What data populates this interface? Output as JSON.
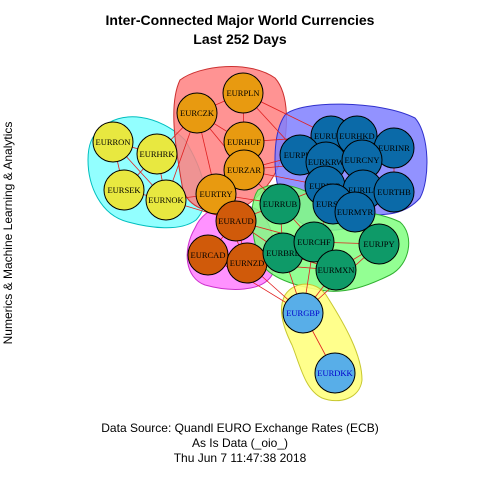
{
  "title_line1": "Inter-Connected Major World Currencies",
  "title_line2": "Last 252 Days",
  "y_side_label": "Numerics & Machine Learning & Analytics",
  "caption_line1": "Data Source: Quandl EURO Exchange Rates (ECB)",
  "caption_line2": "As Is Data (_oio_)",
  "caption_line3": "Thu Jun  7 11:47:38 2018",
  "colors": {
    "cluster_yellow": "#e8e840",
    "cluster_orange": "#e89a10",
    "cluster_darkorange": "#d05a0a",
    "cluster_blue": "#0b6aa8",
    "cluster_green": "#0e9a68",
    "cluster_lightblue": "#58aee8",
    "edge_red": "#e02020",
    "edge_dark": "#333333"
  },
  "groups": [
    {
      "name": "EURRON group",
      "fill": "#7fffff",
      "members": [
        "EURRON",
        "EURHRK",
        "EURSEK",
        "EURNOK"
      ]
    },
    {
      "name": "EURPLN group",
      "fill": "#ff8080",
      "members": [
        "EURPLN",
        "EURCZK",
        "EURHUF",
        "EURZAR",
        "EURTRY"
      ]
    },
    {
      "name": "EURUSD group",
      "fill": "#7f7fff",
      "members": [
        "EURUSD",
        "EURHKD",
        "EURPHP",
        "EURINR",
        "EURKRW",
        "EURCNY",
        "EURIDR",
        "EURILS",
        "EURTHB",
        "EURSGD",
        "EURMYR"
      ]
    },
    {
      "name": "EURAUD group",
      "fill": "#ff7fff",
      "members": [
        "EURAUD",
        "EURCAD",
        "EURNZD"
      ]
    },
    {
      "name": "EURRUB group",
      "fill": "#80ff80",
      "members": [
        "EURRUB",
        "EURBRL",
        "EURCHF",
        "EURJPY",
        "EURMXN"
      ]
    },
    {
      "name": "EURGBP group",
      "fill": "#ffff80",
      "members": [
        "EURGBP",
        "EURDKK"
      ]
    }
  ],
  "nodes": [
    {
      "label": "EURRON",
      "color": "#e8e840"
    },
    {
      "label": "EURHRK",
      "color": "#e8e840"
    },
    {
      "label": "EURSEK",
      "color": "#e8e840"
    },
    {
      "label": "EURNOK",
      "color": "#e8e840"
    },
    {
      "label": "EURPLN",
      "color": "#e89a10"
    },
    {
      "label": "EURCZK",
      "color": "#e89a10"
    },
    {
      "label": "EURHUF",
      "color": "#e89a10"
    },
    {
      "label": "EURZAR",
      "color": "#e89a10"
    },
    {
      "label": "EURTRY",
      "color": "#e89a10"
    },
    {
      "label": "EURAUD",
      "color": "#d05a0a"
    },
    {
      "label": "EURCAD",
      "color": "#d05a0a"
    },
    {
      "label": "EURNZD",
      "color": "#d05a0a"
    },
    {
      "label": "EURUSD",
      "color": "#0b6aa8"
    },
    {
      "label": "EURHKD",
      "color": "#0b6aa8"
    },
    {
      "label": "EURPHP",
      "color": "#0b6aa8"
    },
    {
      "label": "EURINR",
      "color": "#0b6aa8"
    },
    {
      "label": "EURKRW",
      "color": "#0b6aa8"
    },
    {
      "label": "EURCNY",
      "color": "#0b6aa8"
    },
    {
      "label": "EURIDR",
      "color": "#0b6aa8"
    },
    {
      "label": "EURILS",
      "color": "#0b6aa8"
    },
    {
      "label": "EURTHB",
      "color": "#0b6aa8"
    },
    {
      "label": "EURSGD",
      "color": "#0b6aa8"
    },
    {
      "label": "EURMYR",
      "color": "#0b6aa8"
    },
    {
      "label": "EURRUB",
      "color": "#0e9a68"
    },
    {
      "label": "EURBRL",
      "color": "#0e9a68"
    },
    {
      "label": "EURCHF",
      "color": "#0e9a68"
    },
    {
      "label": "EURJPY",
      "color": "#0e9a68"
    },
    {
      "label": "EURMXN",
      "color": "#0e9a68"
    },
    {
      "label": "EURGBP",
      "color": "#58aee8"
    },
    {
      "label": "EURDKK",
      "color": "#58aee8"
    }
  ],
  "edges": [
    [
      "EURRON",
      "EURHRK"
    ],
    [
      "EURRON",
      "EURSEK"
    ],
    [
      "EURRON",
      "EURNOK"
    ],
    [
      "EURHRK",
      "EURSEK"
    ],
    [
      "EURHRK",
      "EURNOK"
    ],
    [
      "EURSEK",
      "EURNOK"
    ],
    [
      "EURNOK",
      "EURTRY"
    ],
    [
      "EURNOK",
      "EURAUD"
    ],
    [
      "EURHRK",
      "EURCZK"
    ],
    [
      "EURNOK",
      "EURCZK"
    ],
    [
      "EURPLN",
      "EURCZK"
    ],
    [
      "EURPLN",
      "EURHUF"
    ],
    [
      "EURCZK",
      "EURHUF"
    ],
    [
      "EURCZK",
      "EURZAR"
    ],
    [
      "EURHUF",
      "EURZAR"
    ],
    [
      "EURZAR",
      "EURTRY"
    ],
    [
      "EURHUF",
      "EURTRY"
    ],
    [
      "EURCZK",
      "EURTRY"
    ],
    [
      "EURPLN",
      "EURUSD"
    ],
    [
      "EURPLN",
      "EURPHP"
    ],
    [
      "EURHUF",
      "EURUSD"
    ],
    [
      "EURZAR",
      "EURPHP"
    ],
    [
      "EURZAR",
      "EURKRW"
    ],
    [
      "EURZAR",
      "EURRUB"
    ],
    [
      "EURTRY",
      "EURRUB"
    ],
    [
      "EURZAR",
      "EURIDR"
    ],
    [
      "EURTRY",
      "EURAUD"
    ],
    [
      "EURAUD",
      "EURCAD"
    ],
    [
      "EURAUD",
      "EURNZD"
    ],
    [
      "EURCAD",
      "EURNZD"
    ],
    [
      "EURAUD",
      "EURRUB"
    ],
    [
      "EURAUD",
      "EURBRL"
    ],
    [
      "EURNZD",
      "EURBRL"
    ],
    [
      "EURCAD",
      "EURBRL"
    ],
    [
      "EURNZD",
      "EURMXN"
    ],
    [
      "EURAUD",
      "EURCHF"
    ],
    [
      "EURCAD",
      "EURGBP"
    ],
    [
      "EURNZD",
      "EURGBP"
    ],
    [
      "EURTRY",
      "EURNZD"
    ],
    [
      "EURUSD",
      "EURHKD"
    ],
    [
      "EURUSD",
      "EURPHP"
    ],
    [
      "EURUSD",
      "EURKRW"
    ],
    [
      "EURUSD",
      "EURCNY"
    ],
    [
      "EURHKD",
      "EURCNY"
    ],
    [
      "EURHKD",
      "EURINR"
    ],
    [
      "EURPHP",
      "EURKRW"
    ],
    [
      "EURKRW",
      "EURCNY"
    ],
    [
      "EURCNY",
      "EURINR"
    ],
    [
      "EURCNY",
      "EURILS"
    ],
    [
      "EURINR",
      "EURTHB"
    ],
    [
      "EURILS",
      "EURTHB"
    ],
    [
      "EURIDR",
      "EURSGD"
    ],
    [
      "EURSGD",
      "EURMYR"
    ],
    [
      "EURIDR",
      "EURKRW"
    ],
    [
      "EURILS",
      "EURMYR"
    ],
    [
      "EURSGD",
      "EURILS"
    ],
    [
      "EURTHB",
      "EURMYR"
    ],
    [
      "EURPHP",
      "EURIDR"
    ],
    [
      "EURRUB",
      "EURBRL"
    ],
    [
      "EURRUB",
      "EURCHF"
    ],
    [
      "EURBRL",
      "EURCHF"
    ],
    [
      "EURCHF",
      "EURJPY"
    ],
    [
      "EURCHF",
      "EURMXN"
    ],
    [
      "EURJPY",
      "EURMXN"
    ],
    [
      "EURBRL",
      "EURMXN"
    ],
    [
      "EURRUB",
      "EURIDR"
    ],
    [
      "EURCHF",
      "EURSGD"
    ],
    [
      "EURJPY",
      "EURMYR"
    ],
    [
      "EURMXN",
      "EURGBP"
    ],
    [
      "EURBRL",
      "EURGBP"
    ],
    [
      "EURCHF",
      "EURGBP"
    ],
    [
      "EURJPY",
      "EURGBP"
    ],
    [
      "EURGBP",
      "EURDKK"
    ]
  ]
}
